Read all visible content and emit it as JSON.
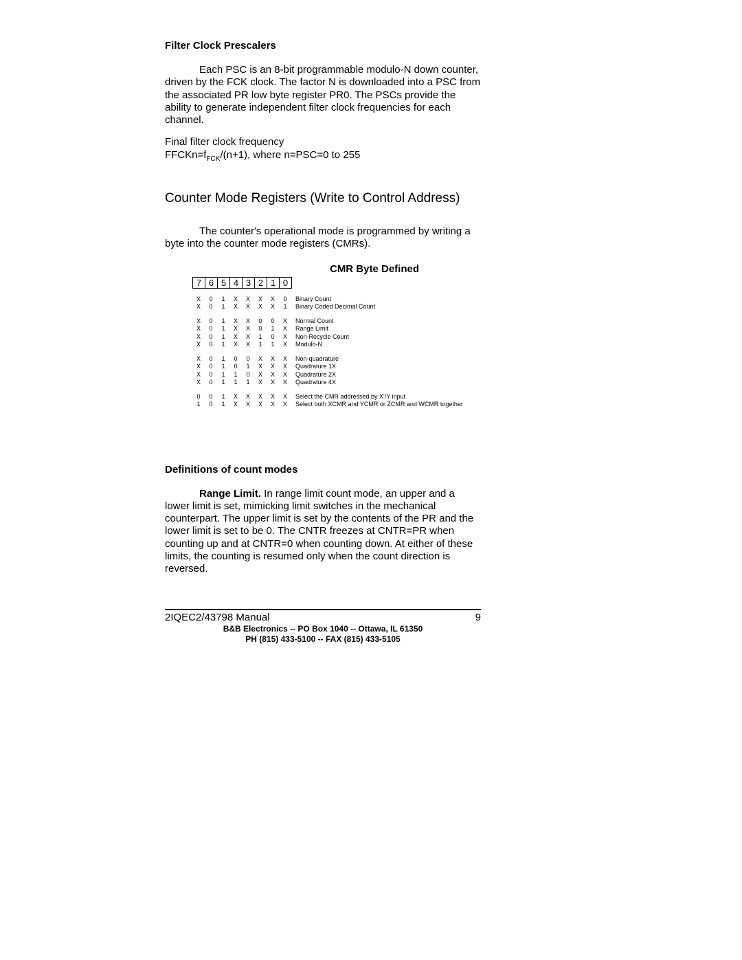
{
  "heading_fcp": "Filter Clock Prescalers",
  "para_fcp": "Each PSC is an 8-bit programmable modulo-N down counter, driven by the FCK clock.  The factor N is downloaded into a PSC from the associated PR low byte register PR0.  The PSCs provide the ability to generate independent filter clock frequencies for each channel.",
  "ffck_line1": "Final filter clock frequency",
  "ffck_line2_a": "FFCKn=f",
  "ffck_line2_sub": "FCK",
  "ffck_line2_b": "/(n+1), where n=PSC=0 to 255",
  "section_cmr_title": "Counter Mode Registers (Write to Control Address)",
  "para_cmr_intro": "The counter's operational mode is programmed by writing a byte into the counter mode registers (CMRs).",
  "cmr_byte_defined": "CMR Byte Defined",
  "bit_headers": [
    "7",
    "6",
    "5",
    "4",
    "3",
    "2",
    "1",
    "0"
  ],
  "cmr_groups": [
    [
      {
        "bits": [
          "X",
          "0",
          "1",
          "X",
          "X",
          "X",
          "X",
          "0"
        ],
        "desc": "Binary Count"
      },
      {
        "bits": [
          "X",
          "0",
          "1",
          "X",
          "X",
          "X",
          "X",
          "1"
        ],
        "desc": "Binary Coded Decimal Count"
      }
    ],
    [
      {
        "bits": [
          "X",
          "0",
          "1",
          "X",
          "X",
          "0",
          "0",
          "X"
        ],
        "desc": "Normal Count"
      },
      {
        "bits": [
          "X",
          "0",
          "1",
          "X",
          "X",
          "0",
          "1",
          "X"
        ],
        "desc": "Range Limit"
      },
      {
        "bits": [
          "X",
          "0",
          "1",
          "X",
          "X",
          "1",
          "0",
          "X"
        ],
        "desc": "Non-Recycle Count"
      },
      {
        "bits": [
          "X",
          "0",
          "1",
          "X",
          "X",
          "1",
          "1",
          "X"
        ],
        "desc": "Modulo-N"
      }
    ],
    [
      {
        "bits": [
          "X",
          "0",
          "1",
          "0",
          "0",
          "X",
          "X",
          "X"
        ],
        "desc": "Non-quadrature"
      },
      {
        "bits": [
          "X",
          "0",
          "1",
          "0",
          "1",
          "X",
          "X",
          "X"
        ],
        "desc": "Quadrature 1X"
      },
      {
        "bits": [
          "X",
          "0",
          "1",
          "1",
          "0",
          "X",
          "X",
          "X"
        ],
        "desc": "Quadrature 2X"
      },
      {
        "bits": [
          "X",
          "0",
          "1",
          "1",
          "1",
          "X",
          "X",
          "X"
        ],
        "desc": "Quadrature 4X"
      }
    ],
    [
      {
        "bits": [
          "0",
          "0",
          "1",
          "X",
          "X",
          "X",
          "X",
          "X"
        ],
        "desc": "Select the CMR addressed by X'/Y input"
      },
      {
        "bits": [
          "1",
          "0",
          "1",
          "X",
          "X",
          "X",
          "X",
          "X"
        ],
        "desc": "Select both XCMR and YCMR or ZCMR and WCMR together"
      }
    ]
  ],
  "heading_def": "Definitions of count modes",
  "range_limit_bold": "Range Limit.",
  "range_limit_body": "  In range limit count mode, an upper and a lower limit is set, mimicking limit switches in the mechanical counterpart.  The upper limit is set by the contents of the PR and the lower limit is set to be 0.  The CNTR freezes at CNTR=PR when counting up and at CNTR=0 when counting down.  At either of these limits, the counting is resumed only when the count direction is reversed.",
  "footer_manual": "2IQEC2/43798 Manual",
  "footer_page": "9",
  "footer_addr": "B&B Electronics  --  PO Box 1040  --  Ottawa, IL  61350",
  "footer_phone": "PH (815) 433-5100  --  FAX (815) 433-5105"
}
